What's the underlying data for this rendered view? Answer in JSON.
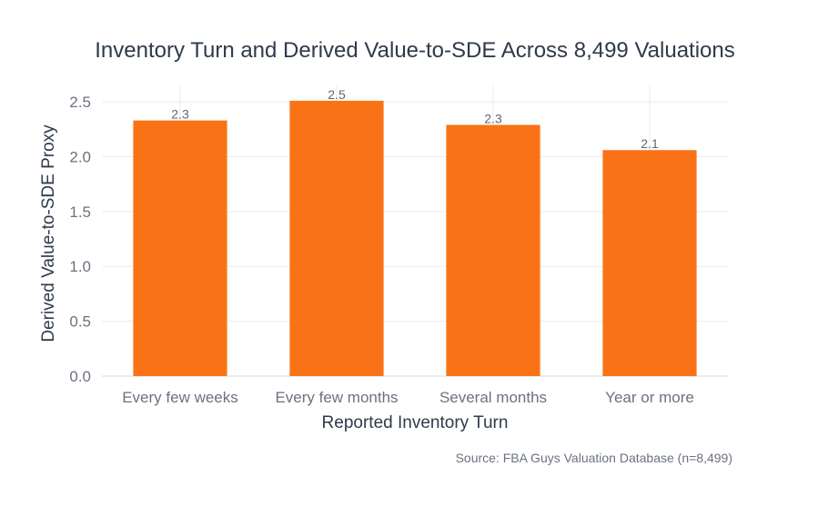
{
  "chart_data": {
    "type": "bar",
    "title": "Inventory Turn and Derived Value-to-SDE Across 8,499 Valuations",
    "xlabel": "Reported Inventory Turn",
    "ylabel": "Derived Value-to-SDE Proxy",
    "categories": [
      "Every few weeks",
      "Every few months",
      "Several months",
      "Year or more"
    ],
    "values": [
      2.33,
      2.51,
      2.29,
      2.06
    ],
    "data_labels": [
      "2.3",
      "2.5",
      "2.3",
      "2.1"
    ],
    "ylim": [
      0,
      2.65
    ],
    "yticks": [
      0,
      0.5,
      1.0,
      1.5,
      2.0,
      2.5
    ],
    "ytick_labels": [
      "0.0",
      "0.5",
      "1.0",
      "1.5",
      "2.0",
      "2.5"
    ],
    "grid": true,
    "bar_color": "#f97316",
    "source": "Source: FBA Guys Valuation Database (n=8,499)"
  }
}
